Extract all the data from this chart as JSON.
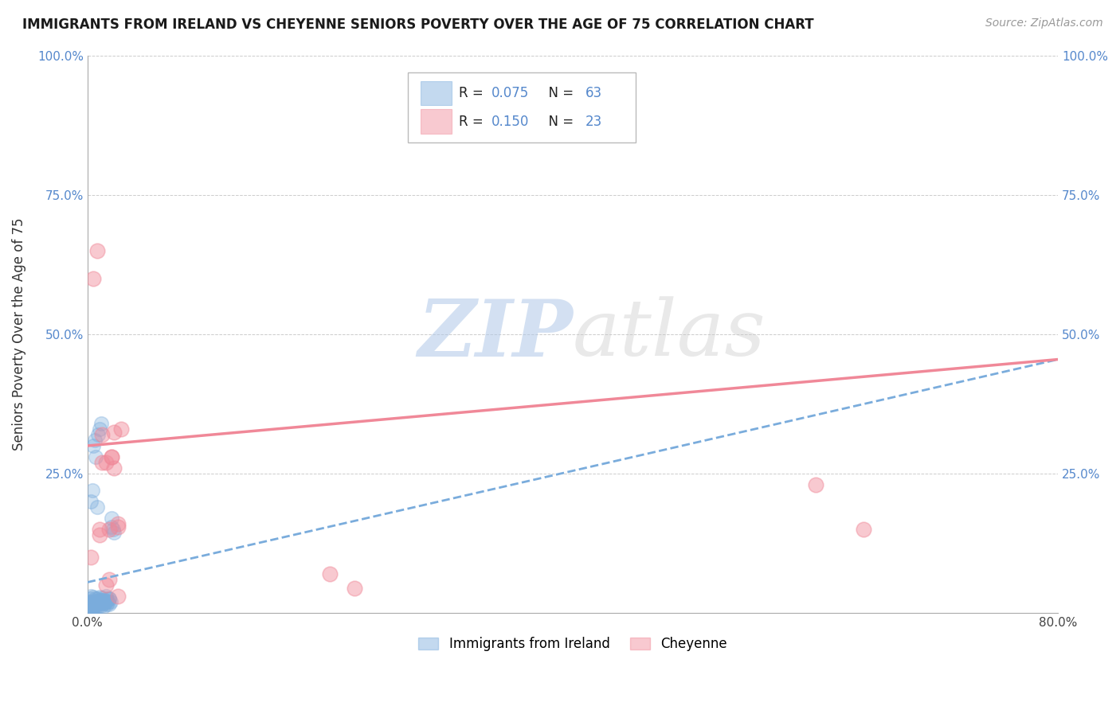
{
  "title": "IMMIGRANTS FROM IRELAND VS CHEYENNE SENIORS POVERTY OVER THE AGE OF 75 CORRELATION CHART",
  "source": "Source: ZipAtlas.com",
  "ylabel": "Seniors Poverty Over the Age of 75",
  "xlim": [
    0.0,
    0.8
  ],
  "ylim": [
    0.0,
    1.0
  ],
  "xticks": [
    0.0,
    0.2,
    0.4,
    0.6,
    0.8
  ],
  "yticks": [
    0.0,
    0.25,
    0.5,
    0.75,
    1.0
  ],
  "blue_R": "0.075",
  "blue_N": "63",
  "pink_R": "0.150",
  "pink_N": "23",
  "blue_color": "#7aacdc",
  "pink_color": "#f08898",
  "legend_label_blue": "Immigrants from Ireland",
  "legend_label_pink": "Cheyenne",
  "watermark_zip": "ZIP",
  "watermark_atlas": "atlas",
  "blue_scatter_x": [
    0.001,
    0.001,
    0.002,
    0.002,
    0.003,
    0.003,
    0.004,
    0.004,
    0.005,
    0.005,
    0.005,
    0.006,
    0.006,
    0.007,
    0.007,
    0.008,
    0.008,
    0.009,
    0.009,
    0.01,
    0.01,
    0.011,
    0.011,
    0.012,
    0.012,
    0.013,
    0.013,
    0.014,
    0.015,
    0.015,
    0.016,
    0.016,
    0.017,
    0.018,
    0.018,
    0.019,
    0.02,
    0.02,
    0.021,
    0.022,
    0.002,
    0.003,
    0.004,
    0.005,
    0.006,
    0.007,
    0.008,
    0.009,
    0.01,
    0.011,
    0.012,
    0.014,
    0.016,
    0.018,
    0.003,
    0.004,
    0.005,
    0.006,
    0.007,
    0.008,
    0.009,
    0.01,
    0.011
  ],
  "blue_scatter_y": [
    0.02,
    0.01,
    0.015,
    0.025,
    0.018,
    0.03,
    0.012,
    0.022,
    0.017,
    0.028,
    0.008,
    0.015,
    0.025,
    0.01,
    0.02,
    0.015,
    0.025,
    0.012,
    0.022,
    0.018,
    0.028,
    0.013,
    0.023,
    0.017,
    0.027,
    0.012,
    0.022,
    0.017,
    0.02,
    0.03,
    0.015,
    0.025,
    0.02,
    0.015,
    0.025,
    0.02,
    0.17,
    0.155,
    0.15,
    0.145,
    0.005,
    0.008,
    0.01,
    0.012,
    0.013,
    0.015,
    0.017,
    0.019,
    0.021,
    0.023,
    0.018,
    0.02,
    0.022,
    0.025,
    0.2,
    0.22,
    0.3,
    0.31,
    0.28,
    0.19,
    0.32,
    0.33,
    0.34
  ],
  "pink_scatter_x": [
    0.003,
    0.005,
    0.008,
    0.01,
    0.012,
    0.015,
    0.018,
    0.02,
    0.022,
    0.025,
    0.01,
    0.012,
    0.015,
    0.018,
    0.02,
    0.022,
    0.025,
    0.028,
    0.2,
    0.22,
    0.6,
    0.64,
    0.025
  ],
  "pink_scatter_y": [
    0.1,
    0.6,
    0.65,
    0.14,
    0.32,
    0.27,
    0.06,
    0.28,
    0.325,
    0.03,
    0.15,
    0.27,
    0.05,
    0.15,
    0.28,
    0.26,
    0.155,
    0.33,
    0.07,
    0.045,
    0.23,
    0.15,
    0.16
  ],
  "blue_trend_x": [
    0.0,
    0.8
  ],
  "blue_trend_y": [
    0.055,
    0.455
  ],
  "pink_trend_x": [
    0.0,
    0.8
  ],
  "pink_trend_y": [
    0.3,
    0.455
  ]
}
